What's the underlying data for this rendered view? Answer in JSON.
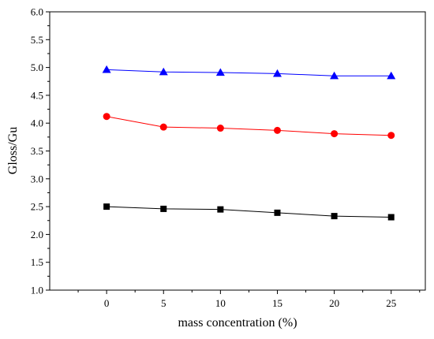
{
  "chart_data": {
    "type": "line",
    "title": "",
    "xlabel": "mass concentration (%)",
    "ylabel": "Gloss/Gu",
    "xlim": [
      -5,
      28
    ],
    "ylim": [
      1.0,
      6.0
    ],
    "x_ticks": [
      0,
      5,
      10,
      15,
      20,
      25
    ],
    "y_ticks": [
      1.0,
      1.5,
      2.0,
      2.5,
      3.0,
      3.5,
      4.0,
      4.5,
      5.0,
      5.5,
      6.0
    ],
    "x_tick_labels": [
      "0",
      "5",
      "10",
      "15",
      "20",
      "25"
    ],
    "y_tick_labels": [
      "1.0",
      "1.5",
      "2.0",
      "2.5",
      "3.0",
      "3.5",
      "4.0",
      "4.5",
      "5.0",
      "5.5",
      "6.0"
    ],
    "grid": false,
    "legend": "none",
    "x": [
      0,
      5,
      10,
      15,
      20,
      25
    ],
    "series": [
      {
        "marker": "triangle",
        "color": "#0000ff",
        "values": [
          4.96,
          4.92,
          4.91,
          4.89,
          4.85,
          4.85
        ]
      },
      {
        "marker": "circle",
        "color": "#ff0000",
        "values": [
          4.12,
          3.93,
          3.91,
          3.87,
          3.81,
          3.78
        ]
      },
      {
        "marker": "square",
        "color": "#000000",
        "values": [
          2.5,
          2.46,
          2.45,
          2.39,
          2.33,
          2.31
        ]
      }
    ]
  }
}
